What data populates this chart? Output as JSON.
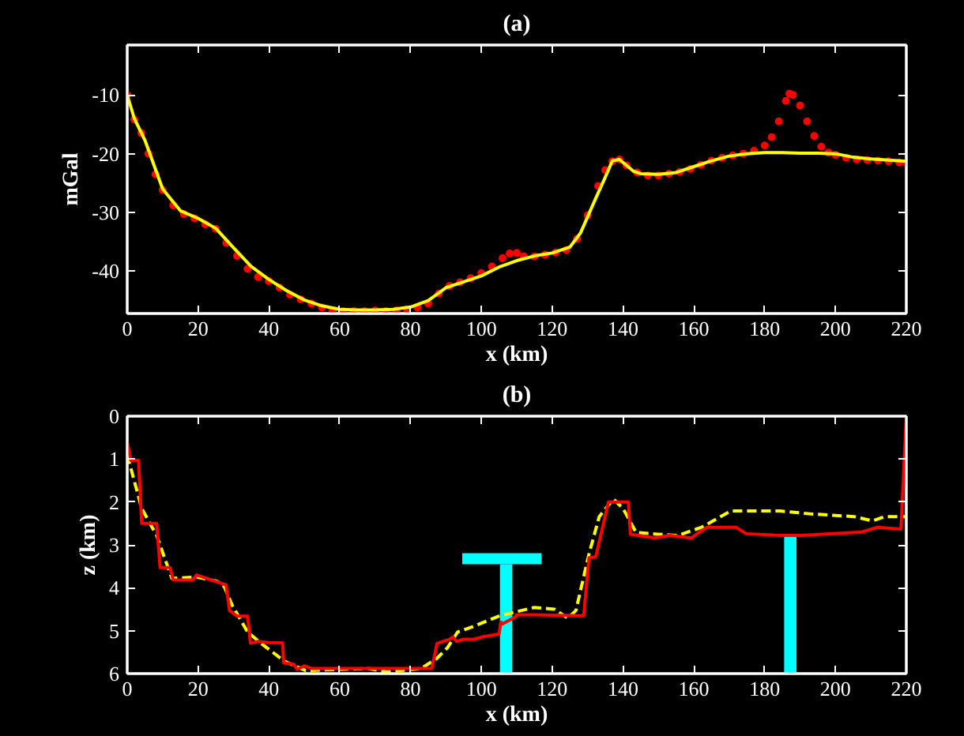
{
  "chart_data": [
    {
      "type": "line",
      "title": "(a)",
      "xlabel": "x (km)",
      "ylabel": "mGal",
      "xlim": [
        0,
        220
      ],
      "ylim": [
        -47.2,
        -1.5
      ],
      "xticks": [
        0,
        20,
        40,
        60,
        80,
        100,
        120,
        140,
        160,
        180,
        200,
        220
      ],
      "yticks": [
        -10,
        -20,
        -30,
        -40
      ],
      "grid": false,
      "series": [
        {
          "type": "scatter",
          "marker": "circle",
          "color": "#ff0000",
          "x": [
            0,
            2,
            4,
            6,
            8,
            10,
            13,
            16,
            19,
            22,
            25,
            28,
            31,
            34,
            37,
            40,
            43,
            46,
            49,
            52,
            55,
            58,
            61,
            64,
            67,
            70,
            73,
            76,
            79,
            82,
            85,
            88,
            91,
            94,
            97,
            100,
            103,
            106,
            108,
            110,
            112,
            115,
            118,
            121,
            124,
            127,
            130,
            133,
            135,
            137,
            139,
            141,
            144,
            147,
            150,
            153,
            156,
            159,
            162,
            165,
            168,
            171,
            174,
            177,
            180,
            182,
            184,
            186,
            187,
            188,
            190,
            192,
            194,
            196,
            198,
            200,
            203,
            206,
            209,
            212,
            215,
            218,
            220
          ],
          "values": [
            -10,
            -14.2,
            -16.5,
            -20,
            -23.5,
            -26.2,
            -28.8,
            -30.3,
            -31,
            -32,
            -32.8,
            -35.2,
            -37.4,
            -39.6,
            -41,
            -41.7,
            -42.8,
            -44,
            -44.8,
            -45.5,
            -46.2,
            -46.7,
            -46.8,
            -46.8,
            -46.8,
            -46.7,
            -46.8,
            -46.7,
            -46.5,
            -46.2,
            -45.5,
            -43.8,
            -42.5,
            -41.9,
            -41.2,
            -40.3,
            -39.2,
            -37.8,
            -37,
            -36.9,
            -37.5,
            -37.5,
            -37.2,
            -36.8,
            -36.4,
            -34.5,
            -30.5,
            -25.5,
            -22.8,
            -21.3,
            -21,
            -22,
            -23.2,
            -23.7,
            -23.7,
            -23.4,
            -23.1,
            -22.6,
            -21.9,
            -21.2,
            -20.7,
            -20.3,
            -20,
            -19.5,
            -18.6,
            -17.2,
            -14.5,
            -11,
            -9.8,
            -10,
            -11.8,
            -14.5,
            -17,
            -18.8,
            -19.8,
            -20.2,
            -20.7,
            -21,
            -21.1,
            -21.2,
            -21.3,
            -21.5,
            -21.6
          ]
        },
        {
          "line_style": "solid",
          "color": "#ffff00",
          "x": [
            0,
            2,
            5,
            10,
            15,
            20,
            25,
            30,
            35,
            40,
            45,
            50,
            55,
            60,
            65,
            70,
            75,
            80,
            85,
            90,
            95,
            100,
            105,
            110,
            115,
            120,
            125,
            128,
            132,
            135,
            137,
            139,
            141,
            143,
            145,
            150,
            155,
            160,
            165,
            170,
            175,
            180,
            185,
            190,
            195,
            200,
            205,
            210,
            215,
            220
          ],
          "values": [
            -10,
            -14,
            -17.7,
            -26,
            -29.7,
            -31,
            -32.7,
            -36,
            -39.2,
            -41.4,
            -43.3,
            -44.9,
            -45.9,
            -46.5,
            -46.6,
            -46.6,
            -46.5,
            -46.1,
            -45,
            -42.8,
            -41.8,
            -40.8,
            -39.3,
            -38.2,
            -37.4,
            -36.9,
            -35.9,
            -33.5,
            -28,
            -24,
            -21.2,
            -21,
            -22,
            -23,
            -23.4,
            -23.5,
            -23.2,
            -22.2,
            -21.2,
            -20.4,
            -20,
            -19.8,
            -19.8,
            -19.9,
            -19.9,
            -20,
            -20.6,
            -20.9,
            -21.1,
            -21.3
          ]
        }
      ]
    },
    {
      "type": "line",
      "title": "(b)",
      "xlabel": "x (km)",
      "ylabel": "z (km)",
      "xlim": [
        0,
        220
      ],
      "ylim": [
        6,
        0
      ],
      "xticks": [
        0,
        20,
        40,
        60,
        80,
        100,
        120,
        140,
        160,
        180,
        200,
        220
      ],
      "yticks": [
        0,
        1,
        2,
        3,
        4,
        5,
        6
      ],
      "grid": false,
      "series": [
        {
          "type": "bar",
          "color": "#00ffff",
          "x": [
            107,
            187.25
          ],
          "base": [
            3.45,
            2.75
          ],
          "values": [
            2.55,
            3.25
          ]
        },
        {
          "line_style": "solid",
          "color": "#00ffff",
          "x": [
            94.6,
            117
          ],
          "values": [
            3.32,
            3.32
          ]
        },
        {
          "line_style": "dashed",
          "color": "#ffff00",
          "x": [
            0,
            4.1,
            8.3,
            12.6,
            19.6,
            25.2,
            27.4,
            29.6,
            34,
            38.5,
            44.4,
            50.4,
            68,
            73.3,
            83,
            87.4,
            90.4,
            93.3,
            97.8,
            105.2,
            114.8,
            120.7,
            124.4,
            126.7,
            130.4,
            133.3,
            137.3,
            140,
            143.7,
            149.6,
            155.6,
            162.2,
            170.4,
            184.4,
            193.3,
            205.2,
            210.4,
            214,
            220
          ],
          "values": [
            0.9,
            2.15,
            2.78,
            3.78,
            3.75,
            3.84,
            3.97,
            4.4,
            5.03,
            5.34,
            5.71,
            5.93,
            5.88,
            5.96,
            5.88,
            5.65,
            5.4,
            5.03,
            4.9,
            4.65,
            4.46,
            4.5,
            4.71,
            4.53,
            3.21,
            2.34,
            1.93,
            2.15,
            2.71,
            2.75,
            2.78,
            2.59,
            2.21,
            2.21,
            2.28,
            2.34,
            2.44,
            2.34,
            2.34
          ]
        },
        {
          "line_style": "solid",
          "color": "#ff0000",
          "x": [
            0,
            1,
            3.2,
            4.1,
            8.3,
            9.3,
            12.1,
            13,
            18.5,
            19.6,
            27.9,
            28.9,
            31,
            34,
            34.8,
            37,
            40.3,
            43.9,
            44.2,
            47,
            48,
            50,
            52,
            86,
            87.5,
            91,
            92,
            93,
            95,
            98,
            100,
            105,
            105.5,
            106,
            109.6,
            110,
            114.8,
            128.9,
            130.4,
            132.3,
            135.9,
            141.5,
            142.1,
            148.9,
            153.3,
            159.3,
            161.5,
            163.7,
            171.9,
            174.8,
            184.4,
            190.4,
            196.3,
            207.4,
            211.9,
            218.5,
            220
          ],
          "values": [
            0.6,
            1.03,
            1.03,
            2.5,
            2.5,
            3.53,
            3.53,
            3.82,
            3.82,
            3.7,
            3.93,
            4.53,
            4.66,
            4.66,
            5.29,
            5.25,
            5.28,
            5.28,
            5.75,
            5.78,
            5.9,
            5.82,
            5.88,
            5.88,
            5.3,
            5.2,
            5.15,
            5.25,
            5.2,
            5.2,
            5.15,
            5.08,
            4.8,
            4.84,
            4.68,
            4.63,
            4.63,
            4.65,
            3.3,
            3.28,
            2.0,
            2.0,
            2.75,
            2.84,
            2.78,
            2.84,
            2.71,
            2.59,
            2.59,
            2.74,
            2.78,
            2.78,
            2.75,
            2.7,
            2.59,
            2.63,
            0
          ]
        }
      ]
    }
  ]
}
